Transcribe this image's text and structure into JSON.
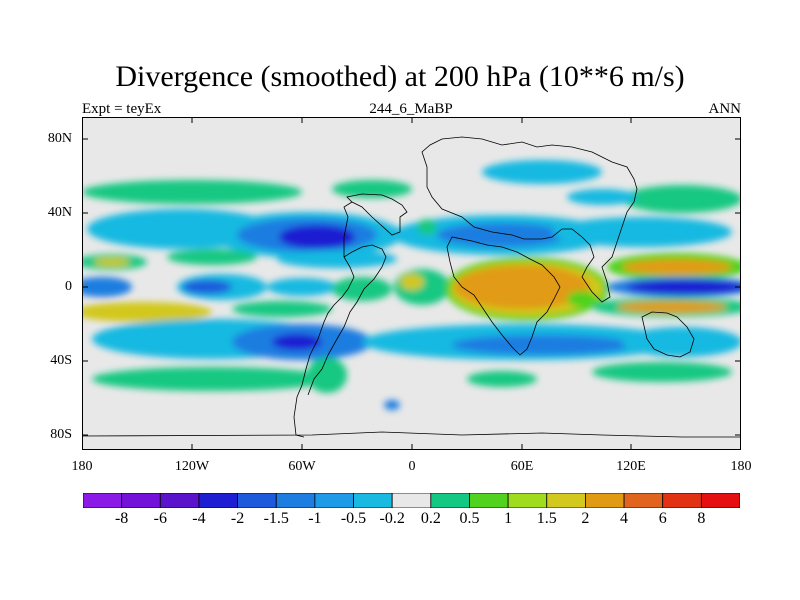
{
  "figure": {
    "title": "Divergence (smoothed) at 200 hPa (10**6 m/s)",
    "left_label": "Expt = teyEx",
    "center_label": "244_6_MaBP",
    "right_label": "ANN"
  },
  "map": {
    "lat_ticks": [
      "80N",
      "40N",
      "0",
      "40S",
      "80S"
    ],
    "lon_ticks": [
      "180",
      "120W",
      "60W",
      "0",
      "60E",
      "120E",
      "180"
    ],
    "projection": "cylindrical equidistant",
    "background_color": "#e8e8e8"
  },
  "colorbar": {
    "colors": [
      "#8c1ae6",
      "#7312d8",
      "#5a14cc",
      "#1e1ed2",
      "#1e5adc",
      "#1e7de1",
      "#1e9be6",
      "#19b9e1",
      "#e8e8e8",
      "#12c882",
      "#50d21e",
      "#a0dc1e",
      "#d2c81e",
      "#e19b12",
      "#e1641e",
      "#e13214",
      "#e60f0f"
    ],
    "labels": [
      "-8",
      "-6",
      "-4",
      "-2",
      "-1.5",
      "-1",
      "-0.5",
      "-0.2",
      "0.2",
      "0.5",
      "1",
      "1.5",
      "2",
      "4",
      "6",
      "8"
    ]
  },
  "chart_data": {
    "type": "heatmap",
    "title": "Divergence (smoothed) at 200 hPa (10**6 m/s)",
    "lon_range": [
      -180,
      180
    ],
    "lat_range": [
      -90,
      90
    ],
    "contour_levels": [
      -8,
      -6,
      -4,
      -2,
      -1.5,
      -1,
      -0.5,
      -0.2,
      0.2,
      0.5,
      1,
      1.5,
      2,
      4,
      6,
      8
    ]
  }
}
